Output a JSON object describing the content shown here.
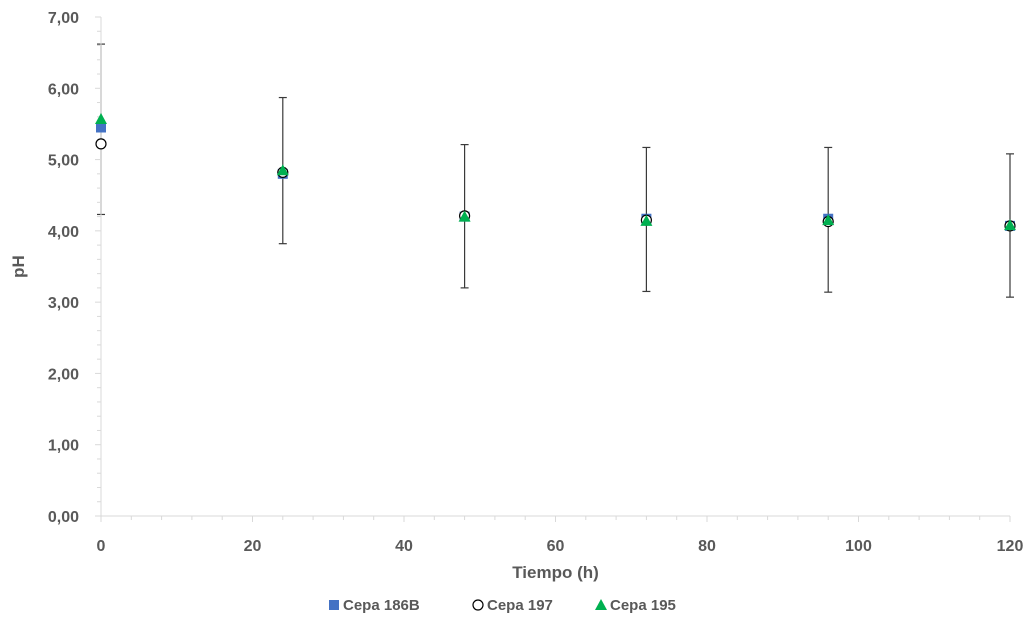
{
  "chart_data": {
    "type": "scatter",
    "title": "",
    "xlabel": "Tiempo (h)",
    "ylabel": "pH",
    "xlim": [
      0,
      120
    ],
    "ylim": [
      0,
      7
    ],
    "x_ticks": [
      0,
      20,
      40,
      60,
      80,
      100,
      120
    ],
    "y_ticks": [
      "0,00",
      "1,00",
      "2,00",
      "3,00",
      "4,00",
      "5,00",
      "6,00",
      "7,00"
    ],
    "grid": false,
    "legend_position": "bottom",
    "series": [
      {
        "name": "Cepa 186B",
        "marker": "square",
        "color": "#4472C4",
        "points": [
          {
            "x": 0,
            "y": 5.45
          },
          {
            "x": 24,
            "y": 4.8
          },
          {
            "x": 48,
            "y": 4.2
          },
          {
            "x": 72,
            "y": 4.17
          },
          {
            "x": 96,
            "y": 4.17
          },
          {
            "x": 120,
            "y": 4.07
          }
        ]
      },
      {
        "name": "Cepa 197",
        "marker": "circle-open",
        "color": "#000000",
        "points": [
          {
            "x": 0,
            "y": 5.22
          },
          {
            "x": 24,
            "y": 4.82
          },
          {
            "x": 48,
            "y": 4.21
          },
          {
            "x": 72,
            "y": 4.15
          },
          {
            "x": 96,
            "y": 4.13
          },
          {
            "x": 120,
            "y": 4.07
          }
        ]
      },
      {
        "name": "Cepa 195",
        "marker": "triangle",
        "color": "#00B050",
        "points": [
          {
            "x": 0,
            "y": 5.57
          },
          {
            "x": 24,
            "y": 4.85
          },
          {
            "x": 48,
            "y": 4.2
          },
          {
            "x": 72,
            "y": 4.14
          },
          {
            "x": 96,
            "y": 4.15
          },
          {
            "x": 120,
            "y": 4.08
          }
        ]
      }
    ],
    "error_bars": [
      {
        "x": 0,
        "low": 4.23,
        "high": 6.62
      },
      {
        "x": 24,
        "low": 3.82,
        "high": 5.87
      },
      {
        "x": 48,
        "low": 3.2,
        "high": 5.21
      },
      {
        "x": 72,
        "low": 3.15,
        "high": 5.17
      },
      {
        "x": 96,
        "low": 3.14,
        "high": 5.17
      },
      {
        "x": 120,
        "low": 3.07,
        "high": 5.08
      }
    ]
  }
}
